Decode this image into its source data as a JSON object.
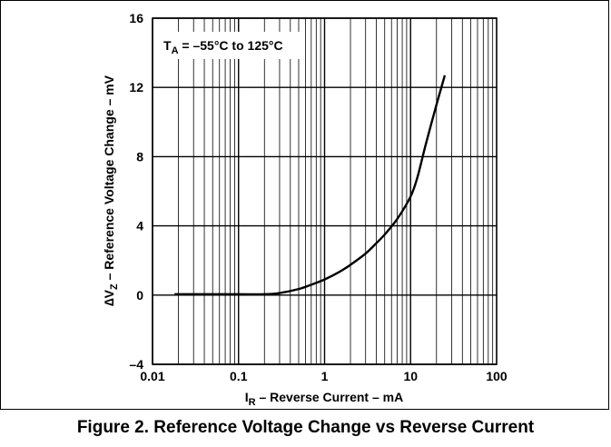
{
  "chart_data": {
    "type": "line",
    "xscale": "log",
    "xlim": [
      0.01,
      100
    ],
    "ylim": [
      -4,
      16
    ],
    "xticks": [
      0.01,
      0.1,
      1,
      10,
      100
    ],
    "xtick_labels": [
      "0.01",
      "0.1",
      "1",
      "10",
      "100"
    ],
    "yticks": [
      -4,
      0,
      4,
      8,
      12,
      16
    ],
    "ytick_labels": [
      "–4",
      "0",
      "4",
      "8",
      "12",
      "16"
    ],
    "grid": true,
    "xlabel": {
      "main": "I",
      "sub": "R",
      "rest": " – Reverse Current – mA"
    },
    "ylabel": {
      "main": "∆V",
      "sub": "Z",
      "rest": " – Reference Voltage Change – mV"
    },
    "annotation": {
      "main": "T",
      "sub": "A",
      "rest": " = –55°C to 125°C"
    },
    "series": [
      {
        "color": "#000000",
        "x": [
          0.018,
          0.05,
          0.1,
          0.2,
          0.3,
          0.5,
          0.7,
          1,
          1.5,
          2,
          3,
          4,
          5,
          7,
          10,
          12,
          15,
          20,
          25
        ],
        "y": [
          0.05,
          0.05,
          0.05,
          0.05,
          0.12,
          0.35,
          0.6,
          0.9,
          1.35,
          1.75,
          2.4,
          3.0,
          3.5,
          4.4,
          5.7,
          6.8,
          8.7,
          11.0,
          12.7
        ]
      }
    ]
  },
  "caption": "Figure 2. Reference Voltage Change vs Reverse Current"
}
